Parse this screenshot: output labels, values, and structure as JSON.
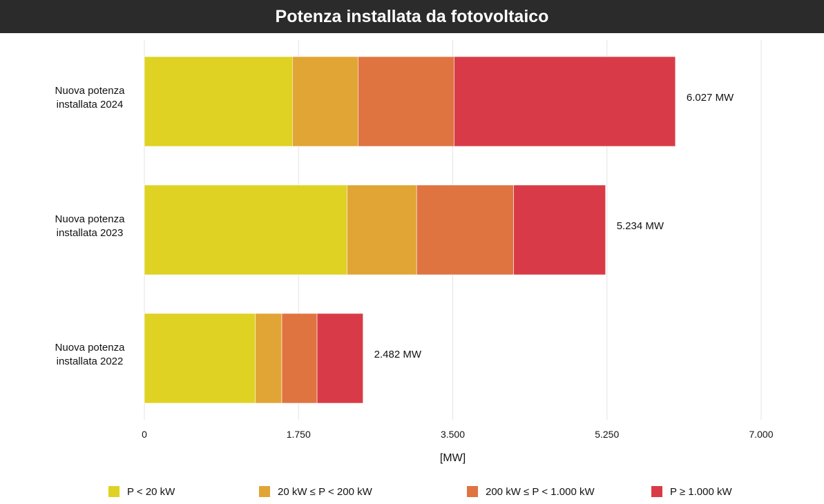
{
  "chart_data": {
    "type": "bar",
    "orientation": "horizontal",
    "stacked": true,
    "title": "Potenza installata da fotovoltaico",
    "categories": [
      {
        "lines": [
          "Nuova potenza",
          "installata 2024"
        ],
        "total_label": "6.027 MW"
      },
      {
        "lines": [
          "Nuova potenza",
          "installata 2023"
        ],
        "total_label": "5.234 MW"
      },
      {
        "lines": [
          "Nuova potenza",
          "installata 2022"
        ],
        "total_label": "2.482 MW"
      }
    ],
    "series": [
      {
        "name": "P < 20 kW",
        "color": "#dfd223",
        "values": [
          1680,
          2300,
          1260
        ]
      },
      {
        "name": "20 kW ≤ P < 200 kW",
        "color": "#e1a535",
        "values": [
          745,
          790,
          300
        ]
      },
      {
        "name": "200 kW ≤ P < 1.000 kW",
        "color": "#df7441",
        "values": [
          1090,
          1100,
          400
        ]
      },
      {
        "name": "P ≥ 1.000 kW",
        "color": "#d83b47",
        "values": [
          2512,
          1044,
          522
        ]
      }
    ],
    "xlim": [
      0,
      7000
    ],
    "ticks": [
      "0",
      "1.750",
      "3.500",
      "5.250",
      "7.000"
    ],
    "tick_values": [
      0,
      1750,
      3500,
      5250,
      7000
    ],
    "xlabel": "[MW]",
    "grid": true,
    "legend_position": "bottom"
  }
}
